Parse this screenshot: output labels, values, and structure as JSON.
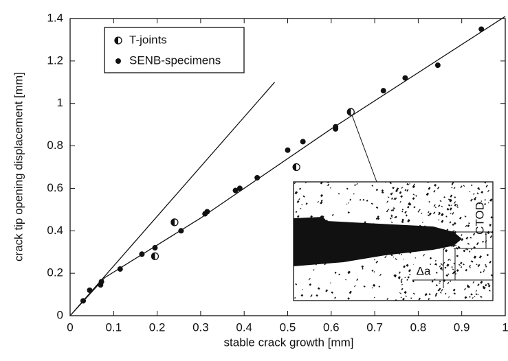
{
  "chart_data": {
    "type": "scatter",
    "x_label": "stable crack growth [mm]",
    "y_label": "crack tip opening displacement [mm]",
    "xlim": [
      0,
      1
    ],
    "ylim": [
      0,
      1.4
    ],
    "xticks": [
      0,
      0.1,
      0.2,
      0.3,
      0.4,
      0.5,
      0.6,
      0.7,
      0.8,
      0.9,
      1
    ],
    "yticks": [
      0,
      0.2,
      0.4,
      0.6,
      0.8,
      1,
      1.2,
      1.4
    ],
    "legend": "upper left",
    "series": [
      {
        "name": "T-joints",
        "color": "#111111",
        "marker": "half",
        "x": [
          0.195,
          0.24,
          0.52,
          0.645
        ],
        "values": [
          0.28,
          0.44,
          0.7,
          0.96
        ]
      },
      {
        "name": "SENB-specimens",
        "color": "#111111",
        "marker": "filled",
        "x": [
          0.03,
          0.045,
          0.07,
          0.072,
          0.115,
          0.165,
          0.195,
          0.255,
          0.31,
          0.315,
          0.38,
          0.39,
          0.43,
          0.5,
          0.535,
          0.61,
          0.61,
          0.72,
          0.77,
          0.845,
          0.945
        ],
        "values": [
          0.07,
          0.12,
          0.145,
          0.16,
          0.22,
          0.29,
          0.32,
          0.4,
          0.48,
          0.49,
          0.59,
          0.6,
          0.65,
          0.78,
          0.82,
          0.88,
          0.89,
          1.06,
          1.12,
          1.18,
          1.35
        ]
      }
    ],
    "lines": [
      {
        "x": [
          0,
          0.08,
          0.3,
          0.6,
          1.0
        ],
        "values": [
          0,
          0.18,
          0.46,
          0.88,
          1.41
        ]
      },
      {
        "x": [
          0,
          0.47
        ],
        "values": [
          0,
          1.1
        ]
      }
    ],
    "inset": {
      "labels": [
        "CTOD",
        "Δa"
      ]
    }
  }
}
